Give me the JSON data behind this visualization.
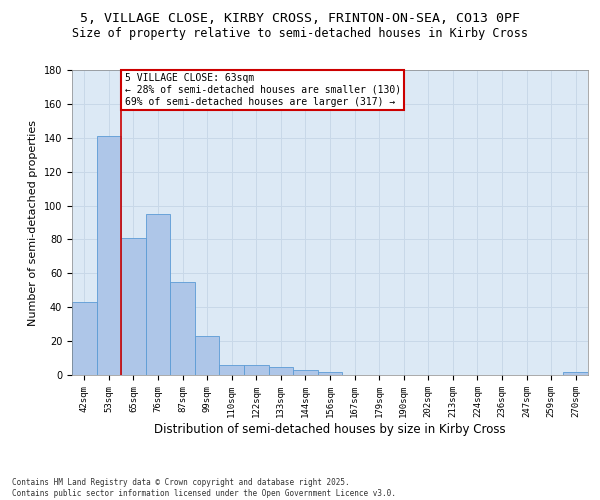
{
  "title1": "5, VILLAGE CLOSE, KIRBY CROSS, FRINTON-ON-SEA, CO13 0PF",
  "title2": "Size of property relative to semi-detached houses in Kirby Cross",
  "xlabel": "Distribution of semi-detached houses by size in Kirby Cross",
  "ylabel": "Number of semi-detached properties",
  "categories": [
    "42sqm",
    "53sqm",
    "65sqm",
    "76sqm",
    "87sqm",
    "99sqm",
    "110sqm",
    "122sqm",
    "133sqm",
    "144sqm",
    "156sqm",
    "167sqm",
    "179sqm",
    "190sqm",
    "202sqm",
    "213sqm",
    "224sqm",
    "236sqm",
    "247sqm",
    "259sqm",
    "270sqm"
  ],
  "values": [
    43,
    141,
    81,
    95,
    55,
    23,
    6,
    6,
    5,
    3,
    2,
    0,
    0,
    0,
    0,
    0,
    0,
    0,
    0,
    0,
    2
  ],
  "bar_color": "#aec6e8",
  "bar_edge_color": "#5b9bd5",
  "property_line_col": 2,
  "property_line_color": "#cc0000",
  "annotation_text": "5 VILLAGE CLOSE: 63sqm\n← 28% of semi-detached houses are smaller (130)\n69% of semi-detached houses are larger (317) →",
  "annotation_box_color": "#cc0000",
  "ylim": [
    0,
    180
  ],
  "yticks": [
    0,
    20,
    40,
    60,
    80,
    100,
    120,
    140,
    160,
    180
  ],
  "grid_color": "#c8d8e8",
  "bg_color": "#dce9f5",
  "footer": "Contains HM Land Registry data © Crown copyright and database right 2025.\nContains public sector information licensed under the Open Government Licence v3.0.",
  "title_fontsize": 9.5,
  "subtitle_fontsize": 8.5,
  "tick_fontsize": 6.5,
  "ylabel_fontsize": 8,
  "xlabel_fontsize": 8.5,
  "annotation_fontsize": 7,
  "footer_fontsize": 5.5
}
